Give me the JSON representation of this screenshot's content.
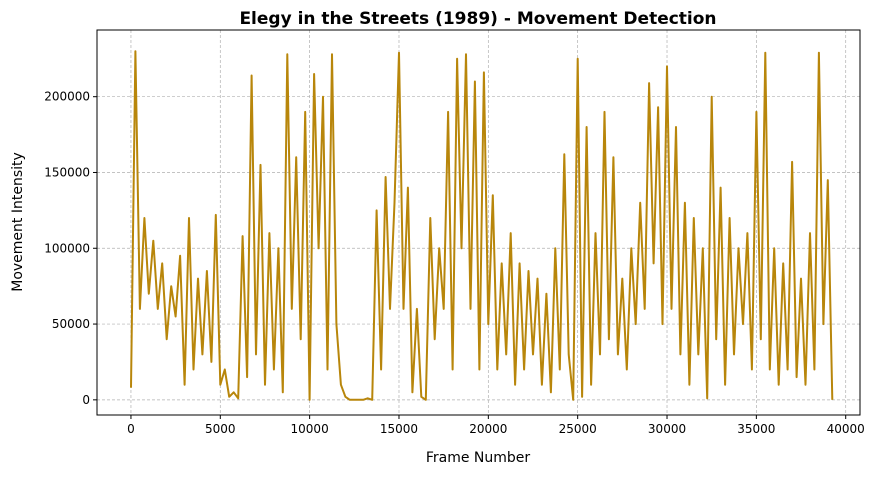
{
  "chart_data": {
    "type": "line",
    "title": "Elegy in the Streets (1989) - Movement Detection",
    "x_label": "Frame Number",
    "y_label": "Movement Intensity",
    "xlim": [
      -1900,
      40800
    ],
    "ylim": [
      -10000,
      244000
    ],
    "xticks": [
      0,
      5000,
      10000,
      15000,
      20000,
      25000,
      30000,
      35000,
      40000
    ],
    "yticks": [
      0,
      50000,
      100000,
      150000,
      200000
    ],
    "grid": true,
    "series": [
      {
        "name": "Movement Intensity",
        "color": "#b8860b",
        "x": [
          0,
          250,
          500,
          750,
          1000,
          1250,
          1500,
          1750,
          2000,
          2250,
          2500,
          2750,
          3000,
          3250,
          3500,
          3750,
          4000,
          4250,
          4500,
          4750,
          5000,
          5250,
          5500,
          5750,
          6000,
          6250,
          6500,
          6750,
          7000,
          7250,
          7500,
          7750,
          8000,
          8250,
          8500,
          8750,
          9000,
          9250,
          9500,
          9750,
          10000,
          10250,
          10500,
          10750,
          11000,
          11250,
          11500,
          11750,
          12000,
          12250,
          12500,
          12750,
          13000,
          13250,
          13500,
          13750,
          14000,
          14250,
          14500,
          14750,
          15000,
          15250,
          15500,
          15750,
          16000,
          16250,
          16500,
          16750,
          17000,
          17250,
          17500,
          17750,
          18000,
          18250,
          18500,
          18750,
          19000,
          19250,
          19500,
          19750,
          20000,
          20250,
          20500,
          20750,
          21000,
          21250,
          21500,
          21750,
          22000,
          22250,
          22500,
          22750,
          23000,
          23250,
          23500,
          23750,
          24000,
          24250,
          24500,
          24750,
          25000,
          25250,
          25500,
          25750,
          26000,
          26250,
          26500,
          26750,
          27000,
          27250,
          27500,
          27750,
          28000,
          28250,
          28500,
          28750,
          29000,
          29250,
          29500,
          29750,
          30000,
          30250,
          30500,
          30750,
          31000,
          31250,
          31500,
          31750,
          32000,
          32250,
          32500,
          32750,
          33000,
          33250,
          33500,
          33750,
          34000,
          34250,
          34500,
          34750,
          35000,
          35250,
          35500,
          35750,
          36000,
          36250,
          36500,
          36750,
          37000,
          37250,
          37500,
          37750,
          38000,
          38250,
          38500,
          38750,
          39000,
          39250
        ],
        "values": [
          8000,
          230000,
          60000,
          120000,
          70000,
          105000,
          60000,
          90000,
          40000,
          75000,
          55000,
          95000,
          10000,
          120000,
          20000,
          80000,
          30000,
          85000,
          25000,
          122000,
          10000,
          20000,
          2000,
          5000,
          1000,
          108000,
          15000,
          214000,
          30000,
          155000,
          10000,
          110000,
          20000,
          100000,
          5000,
          228000,
          60000,
          160000,
          40000,
          190000,
          0,
          215000,
          100000,
          200000,
          20000,
          228000,
          50000,
          10000,
          2000,
          0,
          0,
          0,
          0,
          1000,
          0,
          125000,
          20000,
          147000,
          60000,
          130000,
          229000,
          60000,
          140000,
          5000,
          60000,
          2000,
          0,
          120000,
          40000,
          100000,
          60000,
          190000,
          20000,
          225000,
          100000,
          228000,
          60000,
          210000,
          20000,
          216000,
          50000,
          135000,
          20000,
          90000,
          30000,
          110000,
          10000,
          90000,
          20000,
          85000,
          30000,
          80000,
          10000,
          70000,
          5000,
          100000,
          20000,
          162000,
          30000,
          0,
          225000,
          2000,
          180000,
          10000,
          110000,
          30000,
          190000,
          40000,
          160000,
          30000,
          80000,
          20000,
          100000,
          50000,
          130000,
          60000,
          209000,
          90000,
          193000,
          50000,
          220000,
          60000,
          180000,
          30000,
          130000,
          10000,
          120000,
          30000,
          100000,
          1000,
          200000,
          40000,
          140000,
          10000,
          120000,
          30000,
          100000,
          50000,
          110000,
          20000,
          190000,
          40000,
          229000,
          20000,
          100000,
          10000,
          90000,
          20000,
          157000,
          15000,
          80000,
          10000,
          110000,
          20000,
          229000,
          50000,
          145000,
          0
        ]
      }
    ]
  }
}
